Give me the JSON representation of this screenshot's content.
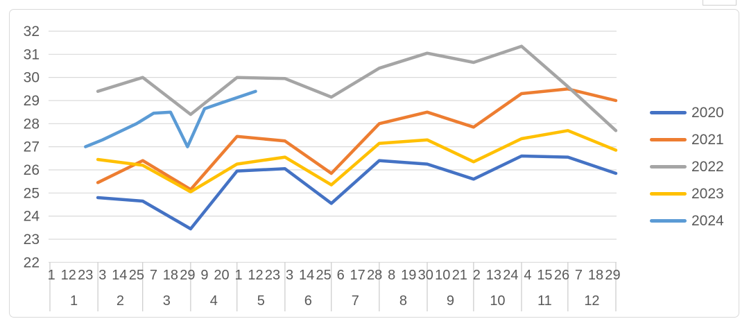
{
  "chart_data": {
    "type": "line",
    "title": "",
    "legend_position": "right",
    "grid": true,
    "y_axis": {
      "min": 22,
      "max": 32,
      "step": 1,
      "tick_labels": [
        "32",
        "31",
        "30",
        "29",
        "28",
        "27",
        "26",
        "25",
        "24",
        "23",
        "22"
      ]
    },
    "x_axis": {
      "month_labels": [
        "1",
        "2",
        "3",
        "4",
        "5",
        "6",
        "7",
        "8",
        "9",
        "10",
        "11",
        "12"
      ],
      "day_labels_by_month": [
        [
          "1",
          "12",
          "23"
        ],
        [
          "3",
          "14",
          "25"
        ],
        [
          "7",
          "18",
          "29"
        ],
        [
          "9",
          "20"
        ],
        [
          "1",
          "12",
          "23"
        ],
        [
          "3",
          "14",
          "25"
        ],
        [
          "6",
          "17",
          "28"
        ],
        [
          "8",
          "19",
          "30"
        ],
        [
          "10",
          "21"
        ],
        [
          "2",
          "13",
          "24"
        ],
        [
          "4",
          "15",
          "26"
        ],
        [
          "7",
          "18",
          "29"
        ]
      ]
    },
    "series": [
      {
        "name": "2020",
        "color": "#4472C4",
        "points": [
          [
            1,
            31,
            24.8
          ],
          [
            2,
            29,
            24.65
          ],
          [
            3,
            31,
            23.45
          ],
          [
            4,
            30,
            25.95
          ],
          [
            5,
            31,
            26.05
          ],
          [
            6,
            30,
            24.55
          ],
          [
            7,
            31,
            26.4
          ],
          [
            8,
            31,
            26.25
          ],
          [
            9,
            30,
            25.6
          ],
          [
            10,
            31,
            26.6
          ],
          [
            11,
            30,
            26.55
          ],
          [
            12,
            31,
            25.85
          ]
        ]
      },
      {
        "name": "2021",
        "color": "#ED7D31",
        "points": [
          [
            1,
            31,
            25.45
          ],
          [
            2,
            29,
            26.4
          ],
          [
            3,
            31,
            25.15
          ],
          [
            4,
            30,
            27.45
          ],
          [
            5,
            31,
            27.25
          ],
          [
            6,
            30,
            25.85
          ],
          [
            7,
            31,
            28.0
          ],
          [
            8,
            31,
            28.5
          ],
          [
            9,
            30,
            27.85
          ],
          [
            10,
            31,
            29.3
          ],
          [
            11,
            30,
            29.5
          ],
          [
            12,
            31,
            29.0
          ]
        ]
      },
      {
        "name": "2022",
        "color": "#A5A5A5",
        "points": [
          [
            1,
            31,
            29.4
          ],
          [
            2,
            29,
            30.0
          ],
          [
            3,
            31,
            28.4
          ],
          [
            4,
            30,
            30.0
          ],
          [
            5,
            31,
            29.95
          ],
          [
            6,
            30,
            29.15
          ],
          [
            7,
            31,
            30.4
          ],
          [
            8,
            31,
            31.05
          ],
          [
            9,
            30,
            30.65
          ],
          [
            10,
            31,
            31.35
          ],
          [
            11,
            30,
            29.6
          ],
          [
            12,
            31,
            27.7
          ]
        ]
      },
      {
        "name": "2023",
        "color": "#FFC000",
        "points": [
          [
            1,
            31,
            26.45
          ],
          [
            2,
            29,
            26.2
          ],
          [
            3,
            31,
            25.05
          ],
          [
            4,
            30,
            26.25
          ],
          [
            5,
            31,
            26.55
          ],
          [
            6,
            30,
            25.35
          ],
          [
            7,
            31,
            27.15
          ],
          [
            8,
            31,
            27.3
          ],
          [
            9,
            30,
            26.35
          ],
          [
            10,
            31,
            27.35
          ],
          [
            11,
            30,
            27.7
          ],
          [
            12,
            31,
            26.85
          ]
        ]
      },
      {
        "name": "2024",
        "color": "#5B9BD5",
        "points": [
          [
            1,
            23,
            27.0
          ],
          [
            2,
            3,
            27.3
          ],
          [
            2,
            14,
            27.65
          ],
          [
            2,
            25,
            28.0
          ],
          [
            3,
            7,
            28.45
          ],
          [
            3,
            18,
            28.5
          ],
          [
            3,
            29,
            27.0
          ],
          [
            4,
            9,
            28.65
          ],
          [
            4,
            20,
            28.9
          ],
          [
            5,
            1,
            29.15
          ],
          [
            5,
            12,
            29.4
          ]
        ]
      }
    ]
  },
  "colors": {
    "text": "#595959",
    "gridline": "#d9d9d9",
    "band_line": "#bfbfbf",
    "frame_border": "#d9d9d9"
  }
}
